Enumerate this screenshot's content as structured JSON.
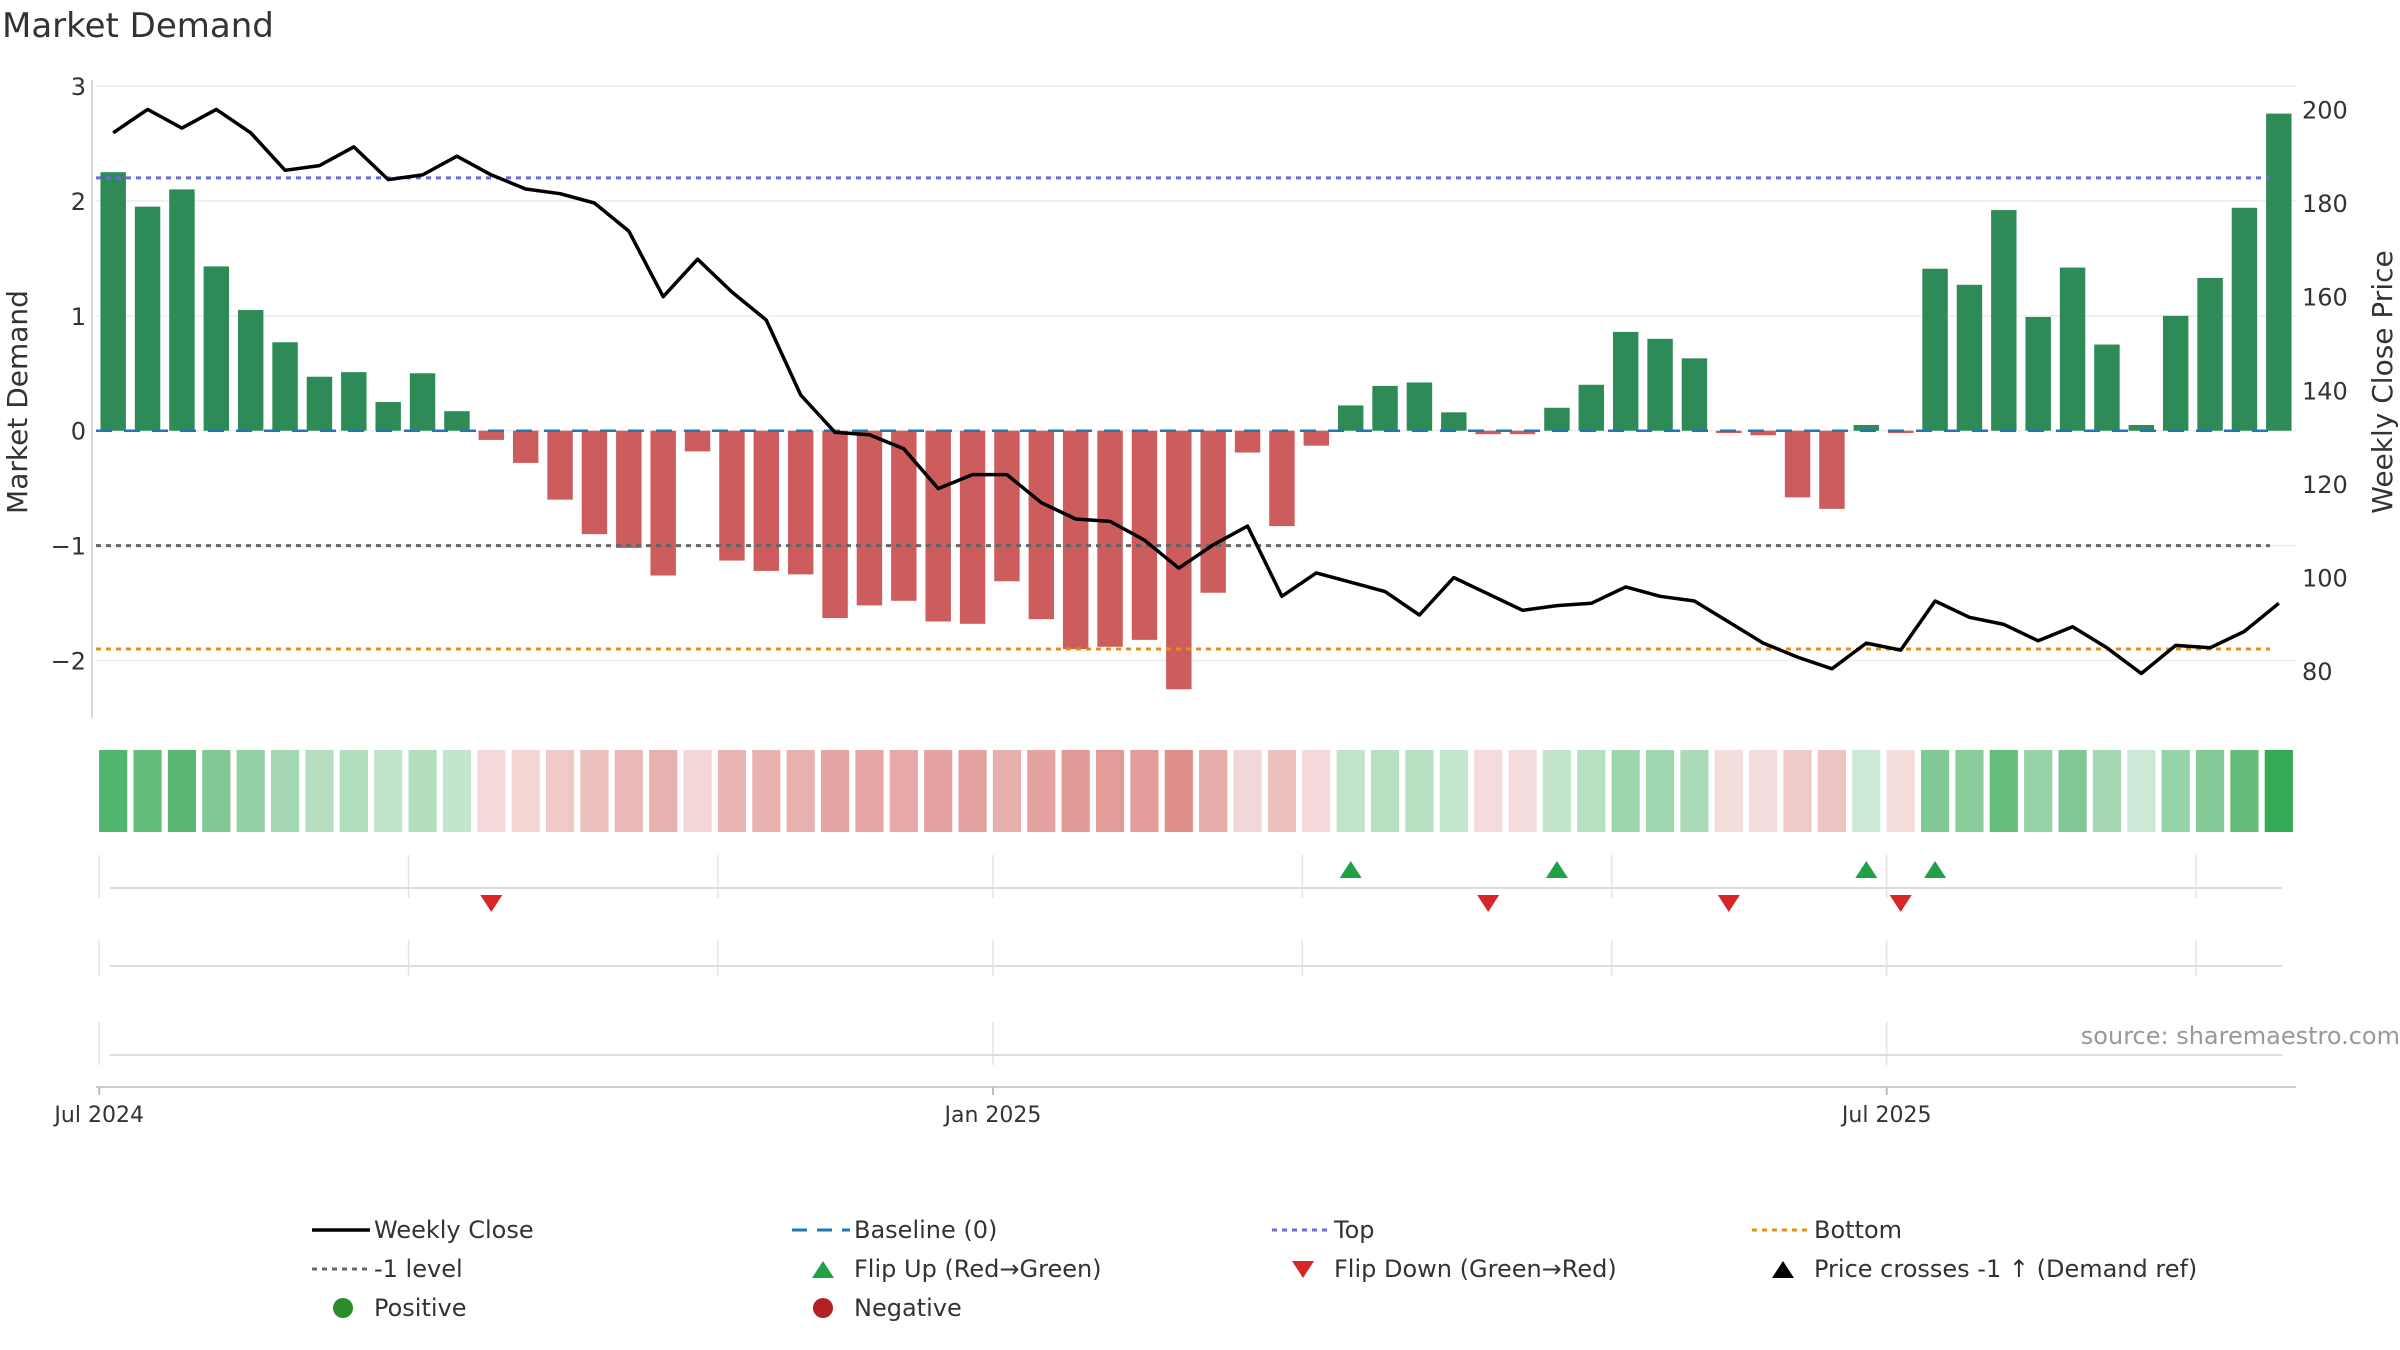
{
  "title": "Market Demand",
  "source": "source: sharemaestro.com",
  "colors": {
    "bar_pos": "#2e8b57",
    "bar_neg": "#cd5c5c",
    "price_line": "#000000",
    "baseline": "#1f77b4",
    "top_line": "#6a6adf",
    "bottom_line": "#e08f1a",
    "minus1_line": "#666666",
    "flip_up": "#22a045",
    "flip_down": "#d62728"
  },
  "legend": [
    {
      "key": "weekly_close",
      "label": "Weekly Close",
      "symbol": "line-solid",
      "color": "#000000"
    },
    {
      "key": "baseline",
      "label": "Baseline (0)",
      "symbol": "line-dash",
      "color": "#1f77b4"
    },
    {
      "key": "top",
      "label": "Top",
      "symbol": "line-dot",
      "color": "#6a6adf"
    },
    {
      "key": "bottom",
      "label": "Bottom",
      "symbol": "line-dot",
      "color": "#e08f1a"
    },
    {
      "key": "minus1",
      "label": "-1 level",
      "symbol": "line-dot",
      "color": "#666666"
    },
    {
      "key": "flip_up",
      "label": "Flip Up (Red→Green)",
      "symbol": "tri-up",
      "color": "#22a045"
    },
    {
      "key": "flip_down",
      "label": "Flip Down (Green→Red)",
      "symbol": "tri-down",
      "color": "#d62728"
    },
    {
      "key": "price_cross",
      "label": "Price crosses -1 ↑ (Demand ref)",
      "symbol": "tri-up",
      "color": "#000000"
    },
    {
      "key": "positive",
      "label": "Positive",
      "symbol": "dot",
      "color": "#2a8c2a"
    },
    {
      "key": "negative",
      "label": "Negative",
      "symbol": "dot",
      "color": "#b22222"
    }
  ],
  "chart_data": {
    "type": "bar",
    "title": "Market Demand",
    "ylabel": "Market Demand",
    "y2label": "Weekly Close Price",
    "ylim": [
      -2.5,
      3
    ],
    "yticks": [
      3,
      2,
      1,
      0,
      -1,
      -2
    ],
    "ytick_labels": [
      "3",
      "2",
      "1",
      "0",
      "−1",
      "−2"
    ],
    "y2lim": [
      70,
      205
    ],
    "y2ticks": [
      200,
      180,
      160,
      140,
      120,
      100,
      80
    ],
    "x_tick_labels": [
      "Jul 2024",
      "Jan 2025",
      "Jul 2025"
    ],
    "x_tick_weeks": [
      0,
      26,
      52
    ],
    "reference_lines": {
      "top": 2.2,
      "bottom": -1.9,
      "minus1": -1,
      "baseline": 0
    },
    "demand": [
      2.25,
      1.95,
      2.1,
      1.43,
      1.05,
      0.77,
      0.47,
      0.51,
      0.25,
      0.5,
      0.17,
      -0.08,
      -0.28,
      -0.6,
      -0.9,
      -1.02,
      -1.26,
      -0.18,
      -1.13,
      -1.22,
      -1.25,
      -1.63,
      -1.52,
      -1.48,
      -1.66,
      -1.68,
      -1.31,
      -1.64,
      -1.9,
      -1.88,
      -1.82,
      -2.25,
      -1.41,
      -0.19,
      -0.83,
      -0.13,
      0.22,
      0.39,
      0.42,
      0.16,
      -0.03,
      -0.03,
      0.2,
      0.4,
      0.86,
      0.8,
      0.63,
      -0.02,
      -0.04,
      -0.58,
      -0.68,
      0.05,
      -0.02,
      1.41,
      1.27,
      1.92,
      0.99,
      1.42,
      0.75,
      0.05,
      1.0,
      1.33,
      1.94,
      2.76
    ],
    "weekly_close": [
      195,
      200,
      196,
      200,
      195,
      187,
      188,
      192,
      185,
      186,
      190,
      186,
      183,
      182,
      180,
      174,
      160,
      168,
      161,
      155,
      139,
      131,
      130.5,
      127.5,
      119,
      122,
      122,
      116,
      112.5,
      112,
      108,
      102,
      107,
      111,
      96,
      101,
      99,
      97,
      92,
      100,
      96.5,
      93,
      94,
      94.5,
      98,
      96,
      95,
      90.5,
      86,
      83,
      80.5,
      86,
      84.5,
      95,
      91.5,
      90,
      86.5,
      89.5,
      85,
      79.5,
      85.5,
      85,
      88.5,
      94.5
    ],
    "flip_up_weeks": [
      36,
      42,
      51,
      53
    ],
    "flip_down_weeks": [
      11,
      40,
      47,
      52
    ]
  }
}
